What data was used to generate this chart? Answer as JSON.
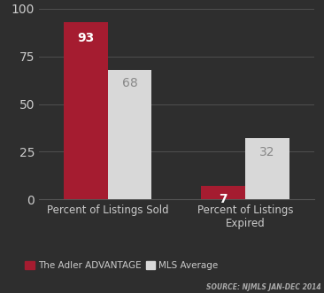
{
  "categories": [
    "Percent of Listings Sold",
    "Percent of Listings\nExpired"
  ],
  "adler_values": [
    93,
    7
  ],
  "mls_values": [
    68,
    32
  ],
  "adler_color": "#a51c30",
  "mls_color": "#d8d8d8",
  "background_color": "#2e2e2e",
  "grid_color": "#555555",
  "text_color": "#cccccc",
  "tick_color": "#cccccc",
  "bar_label_color_adler": "#ffffff",
  "bar_label_color_mls": "#888888",
  "ylim": [
    0,
    100
  ],
  "yticks": [
    0,
    25,
    50,
    75,
    100
  ],
  "legend_label_adler": "The Adler ADVANTAGE",
  "legend_label_mls": "MLS Average",
  "source_text": "SOURCE: NJMLS JAN-DEC 2014",
  "bar_width": 0.32
}
